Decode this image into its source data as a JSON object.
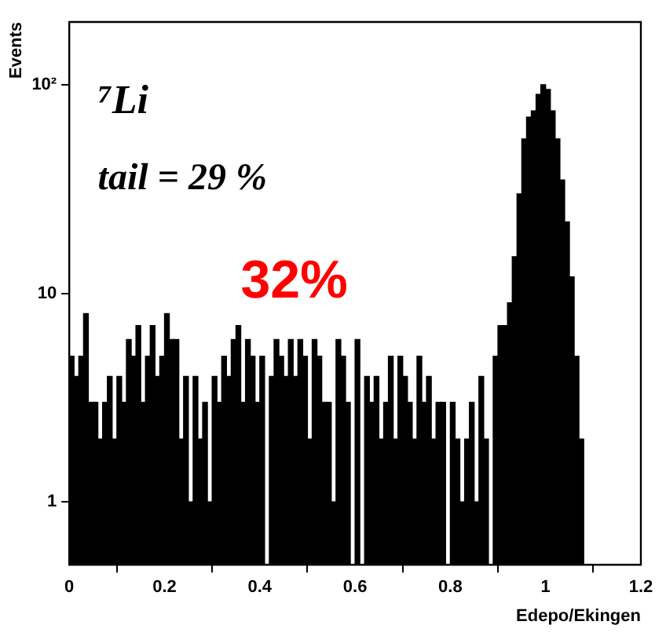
{
  "chart_data": {
    "type": "histogram",
    "ylabel": "Events",
    "xlabel": "Edepo/Ekingen",
    "annotations": [
      "⁷Li",
      "tail = 29 %",
      "32%"
    ],
    "bins": [
      0,
      0.01,
      0.02,
      0.03,
      0.04,
      0.05,
      0.06,
      0.07,
      0.08,
      0.09,
      0.1,
      0.11,
      0.12,
      0.13,
      0.14,
      0.15,
      0.16,
      0.17,
      0.18,
      0.19,
      0.2,
      0.21,
      0.22,
      0.23,
      0.24,
      0.25,
      0.26,
      0.27,
      0.28,
      0.29,
      0.3,
      0.31,
      0.32,
      0.33,
      0.34,
      0.35,
      0.36,
      0.37,
      0.38,
      0.39,
      0.4,
      0.41,
      0.42,
      0.43,
      0.44,
      0.45,
      0.46,
      0.47,
      0.48,
      0.49,
      0.5,
      0.51,
      0.52,
      0.53,
      0.54,
      0.55,
      0.56,
      0.57,
      0.58,
      0.59,
      0.6,
      0.61,
      0.62,
      0.63,
      0.64,
      0.65,
      0.66,
      0.67,
      0.68,
      0.69,
      0.7,
      0.71,
      0.72,
      0.73,
      0.74,
      0.75,
      0.76,
      0.77,
      0.78,
      0.79,
      0.8,
      0.81,
      0.82,
      0.83,
      0.84,
      0.85,
      0.86,
      0.87,
      0.88,
      0.89,
      0.9,
      0.91,
      0.92,
      0.93,
      0.94,
      0.95,
      0.96,
      0.97,
      0.98,
      0.99,
      1,
      1.01,
      1.02,
      1.03,
      1.04,
      1.05,
      1.06,
      1.07,
      1.08,
      1.09,
      1.1,
      1.11,
      1.12,
      1.13,
      1.14,
      1.15,
      1.16,
      1.17,
      1.18,
      1.19,
      1.2
    ],
    "values": [
      5,
      4,
      5,
      8,
      3,
      3,
      2,
      3,
      4,
      2,
      4,
      3,
      6,
      5,
      7,
      3,
      5,
      7,
      4,
      5,
      8,
      6,
      6,
      2,
      4,
      1,
      4,
      2,
      3,
      1,
      4,
      3,
      5,
      4,
      6,
      7,
      3,
      6,
      5,
      3,
      5,
      null,
      4,
      6,
      5,
      4,
      6,
      4,
      6,
      5,
      2,
      6,
      5,
      3,
      3,
      1,
      6,
      5,
      3,
      null,
      6,
      null,
      4,
      3,
      4,
      2,
      3,
      5,
      2,
      5,
      4,
      3,
      2,
      5,
      3,
      4,
      2,
      3,
      3,
      null,
      3,
      2,
      1,
      2,
      3,
      1,
      4,
      2,
      null,
      5,
      7,
      7,
      9,
      15,
      30,
      55,
      70,
      75,
      90,
      100,
      95,
      75,
      55,
      35,
      22,
      12,
      5,
      2,
      null,
      null,
      null,
      null,
      null,
      null,
      null,
      null,
      null,
      null,
      null,
      null
    ],
    "color": "#000000",
    "xlim": [
      0,
      1.2
    ],
    "xticks": [
      0,
      0.2,
      0.4,
      0.6,
      0.8,
      1,
      1.2
    ],
    "log": true,
    "ylim": [
      0.5,
      200
    ],
    "yticks": [
      1,
      10,
      {
        "value": 100,
        "label": "10²"
      }
    ],
    "grid": false,
    "legend": false
  }
}
